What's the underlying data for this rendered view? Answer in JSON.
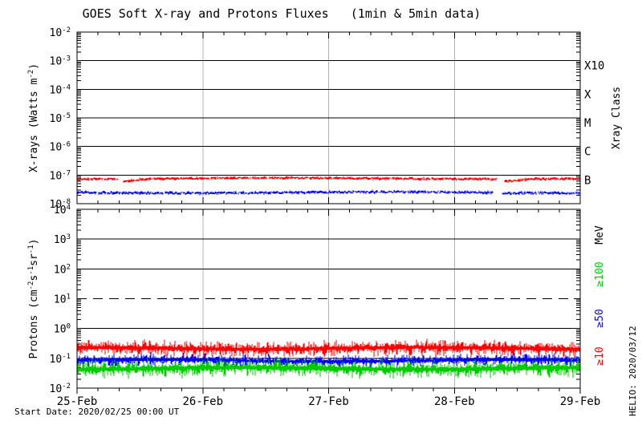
{
  "chart_data": {
    "type": "line",
    "title": "GOES Soft X-ray and Protons Fluxes   (1min & 5min data)",
    "footer_note": "Start Date: 2020/02/25 00:00 UT",
    "watermark": "HELIO: 2020/03/12",
    "grid": {
      "day_gridline_color": "#b3b3b3",
      "frame_color": "#000000"
    },
    "x_axis": {
      "tick_labels": [
        "25-Feb",
        "26-Feb",
        "27-Feb",
        "28-Feb",
        "29-Feb"
      ],
      "days_shown": 4,
      "minor_ticks_per_day": 6
    },
    "panels": [
      {
        "id": "xray",
        "ylabel_parts": [
          [
            "X-rays (Watts m"
          ],
          [
            "-2",
            "sup"
          ],
          [
            ")"
          ]
        ],
        "ylim_exponents": [
          -8,
          -2
        ],
        "ytick_exponents": [
          -2,
          -3,
          -4,
          -5,
          -6,
          -7,
          -8
        ],
        "solid_line_exponents": [
          -3,
          -4,
          -5,
          -6,
          -7
        ],
        "dashed_line_exponents": [],
        "right_axis_title": "Xray Class",
        "class_labels": [
          {
            "text": "X10",
            "at_exponent": -3
          },
          {
            "text": "X",
            "at_exponent": -4
          },
          {
            "text": "M",
            "at_exponent": -5
          },
          {
            "text": "C",
            "at_exponent": -6
          },
          {
            "text": "B",
            "at_exponent": -7
          }
        ],
        "series": [
          {
            "name": "xray-series-red",
            "color": "#ff0000",
            "typical_flux_W_m2": 7.6e-08,
            "log_level": -7.12,
            "jitter": 0.05,
            "gaps_days": [
              [
                0.33,
                0.37
              ],
              [
                3.34,
                3.4
              ]
            ],
            "post_gap_dip": 0.08,
            "seed": 11
          },
          {
            "name": "xray-series-blue",
            "color": "#0000ff",
            "typical_flux_W_m2": 2.4e-08,
            "log_level": -7.61,
            "jitter": 0.06,
            "gaps_days": [
              [
                3.31,
                3.38
              ]
            ],
            "post_gap_dip": 0.03,
            "seed": 22
          }
        ]
      },
      {
        "id": "protons",
        "ylabel_parts": [
          [
            "Protons (cm"
          ],
          [
            "-2",
            "sup"
          ],
          [
            "s"
          ],
          [
            "-1",
            "sup"
          ],
          [
            "sr"
          ],
          [
            "-1",
            "sup"
          ],
          [
            ")"
          ]
        ],
        "ylim_exponents": [
          -2,
          4
        ],
        "ytick_exponents": [
          4,
          3,
          2,
          1,
          0,
          -1,
          -2
        ],
        "solid_line_exponents": [
          3,
          2,
          0,
          -1
        ],
        "dashed_line_exponents": [
          1
        ],
        "unit_label": "MeV",
        "energy_labels": [
          {
            "text": "≥100",
            "color": "#00cc00"
          },
          {
            "text": "≥50",
            "color": "#0000ff"
          },
          {
            "text": "≥10",
            "color": "#ff0000"
          }
        ],
        "series": [
          {
            "name": "protons-ge10MeV",
            "label": "≥10",
            "color": "#ff0000",
            "typical_flux": 0.21,
            "flux_range": [
              0.1,
              0.41
            ],
            "log_center": -0.66,
            "up": 0.3,
            "down": 0.34,
            "seed": 33
          },
          {
            "name": "protons-ge50MeV",
            "label": "≥50",
            "color": "#0000ff",
            "typical_flux": 0.08,
            "flux_range": [
              0.05,
              0.16
            ],
            "log_center": -1.08,
            "up": 0.26,
            "down": 0.24,
            "seed": 44
          },
          {
            "name": "protons-ge100MeV",
            "label": "≥100",
            "color": "#00cc00",
            "typical_flux": 0.045,
            "flux_range": [
              0.02,
              0.11
            ],
            "log_center": -1.34,
            "up": 0.36,
            "down": 0.36,
            "seed": 55
          }
        ]
      }
    ]
  }
}
